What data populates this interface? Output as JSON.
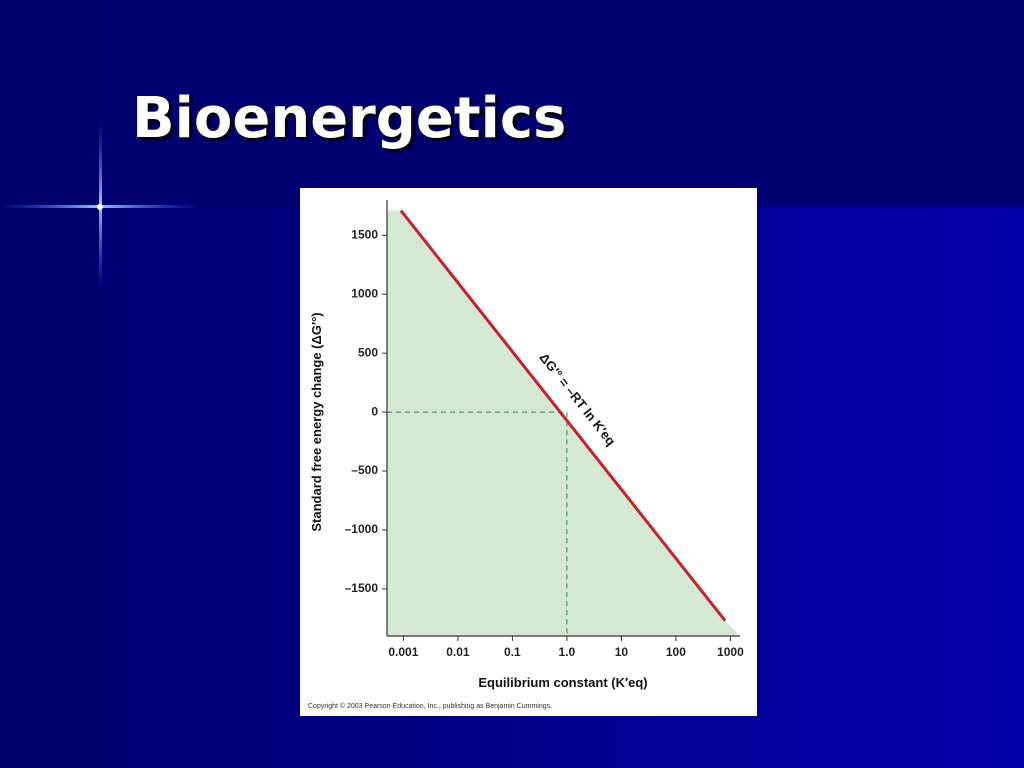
{
  "slide": {
    "title": "Bioenergetics"
  },
  "chart_data": {
    "type": "line",
    "x_label": "Equilibrium constant (K′eq)",
    "y_label": "Standard free energy change (ΔG′°)",
    "annotation": "ΔG′° = –RT ln K′eq",
    "credit": "Copyright © 2003 Pearson Education, Inc., publishing as Benjamin Cummings.",
    "x": [
      0.0009,
      800
    ],
    "values": [
      1710,
      -1770
    ],
    "color": "#cc1f2e",
    "area_color": "#d5e8d4",
    "reference": {
      "x": 1,
      "y": 0
    },
    "log_x": true,
    "xlim": [
      0.0005,
      1500
    ],
    "ylim": [
      -1900,
      1800
    ],
    "xticks": [
      0.001,
      0.01,
      0.1,
      {
        "value": 1,
        "label": "1.0"
      },
      10,
      100,
      1000
    ],
    "yticks": [
      1500,
      1000,
      500,
      0,
      {
        "value": -500,
        "label": "–500"
      },
      {
        "value": -1000,
        "label": "–1000"
      },
      {
        "value": -1500,
        "label": "–1500"
      }
    ]
  }
}
